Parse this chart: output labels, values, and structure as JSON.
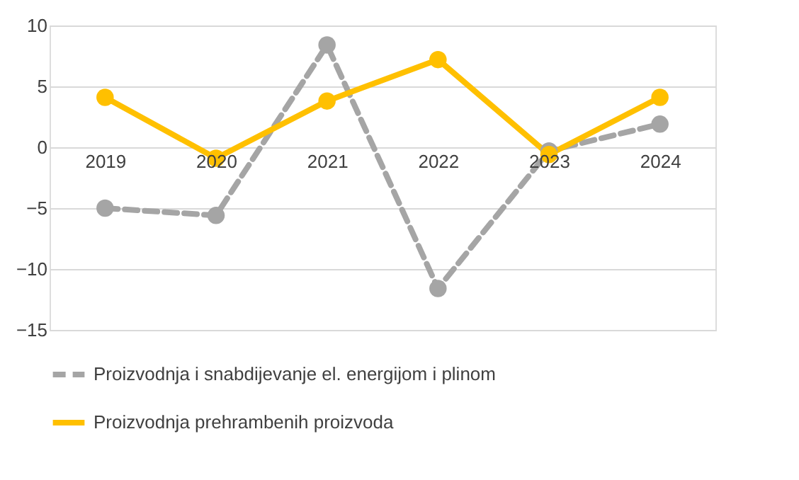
{
  "chart_data": {
    "type": "line",
    "categories": [
      "2019",
      "2020",
      "2021",
      "2022",
      "2023",
      "2024"
    ],
    "series": [
      {
        "name": "Proizvodnja i snabdijevanje el. energijom i plinom",
        "color": "#a5a5a5",
        "line_style": "dashed",
        "values": [
          -5.0,
          -5.6,
          8.4,
          -11.6,
          -0.3,
          1.9
        ]
      },
      {
        "name": "Proizvodnja prehrambenih proizvoda",
        "color": "#ffc000",
        "line_style": "solid",
        "values": [
          4.1,
          -0.9,
          3.8,
          7.2,
          -0.6,
          4.1
        ]
      }
    ],
    "ylim": [
      -15,
      10
    ],
    "yticks": [
      -15,
      -10,
      -5,
      0,
      5,
      10
    ],
    "grid": "y",
    "legend": "bottom",
    "marker": "circle"
  }
}
